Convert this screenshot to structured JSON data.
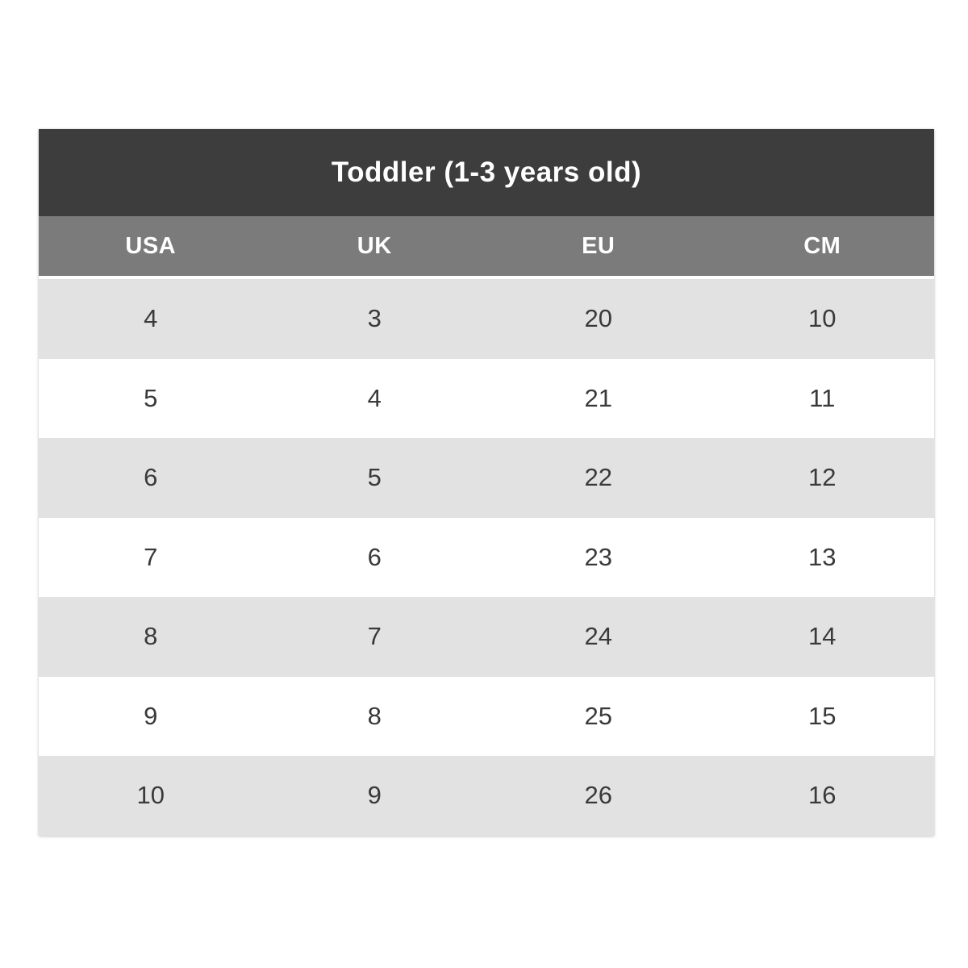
{
  "colors": {
    "title_bg": "#3d3d3d",
    "header_bg": "#7b7b7b",
    "row_alt_bg": "#e2e2e2",
    "row_bg": "#ffffff",
    "header_text": "#ffffff",
    "cell_text": "#3a3a3a"
  },
  "chart_data": {
    "type": "table",
    "title": "Toddler (1-3 years old)",
    "columns": [
      "USA",
      "UK",
      "EU",
      "CM"
    ],
    "rows": [
      [
        "4",
        "3",
        "20",
        "10"
      ],
      [
        "5",
        "4",
        "21",
        "11"
      ],
      [
        "6",
        "5",
        "22",
        "12"
      ],
      [
        "7",
        "6",
        "23",
        "13"
      ],
      [
        "8",
        "7",
        "24",
        "14"
      ],
      [
        "9",
        "8",
        "25",
        "15"
      ],
      [
        "10",
        "9",
        "26",
        "16"
      ]
    ]
  }
}
